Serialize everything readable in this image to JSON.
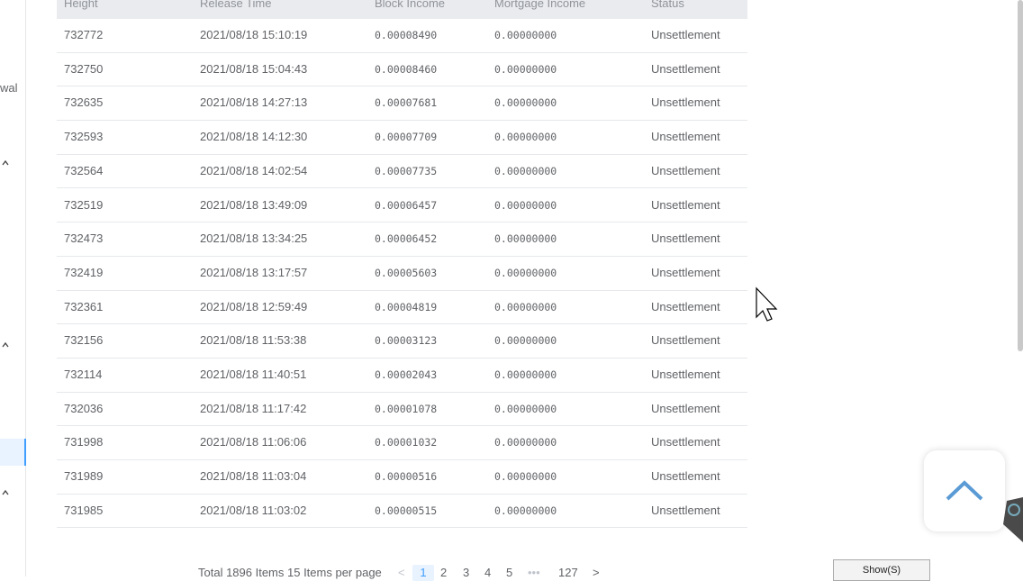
{
  "sidebar": {
    "label": "wal"
  },
  "table": {
    "header": [
      "Height",
      "Release Time",
      "Block Income",
      "Mortgage Income",
      "Status"
    ],
    "rows": [
      [
        "732772",
        "2021/08/18 15:10:19",
        "0.00008490",
        "0.00000000",
        "Unsettlement"
      ],
      [
        "732750",
        "2021/08/18 15:04:43",
        "0.00008460",
        "0.00000000",
        "Unsettlement"
      ],
      [
        "732635",
        "2021/08/18 14:27:13",
        "0.00007681",
        "0.00000000",
        "Unsettlement"
      ],
      [
        "732593",
        "2021/08/18 14:12:30",
        "0.00007709",
        "0.00000000",
        "Unsettlement"
      ],
      [
        "732564",
        "2021/08/18 14:02:54",
        "0.00007735",
        "0.00000000",
        "Unsettlement"
      ],
      [
        "732519",
        "2021/08/18 13:49:09",
        "0.00006457",
        "0.00000000",
        "Unsettlement"
      ],
      [
        "732473",
        "2021/08/18 13:34:25",
        "0.00006452",
        "0.00000000",
        "Unsettlement"
      ],
      [
        "732419",
        "2021/08/18 13:17:57",
        "0.00005603",
        "0.00000000",
        "Unsettlement"
      ],
      [
        "732361",
        "2021/08/18 12:59:49",
        "0.00004819",
        "0.00000000",
        "Unsettlement"
      ],
      [
        "732156",
        "2021/08/18 11:53:38",
        "0.00003123",
        "0.00000000",
        "Unsettlement"
      ],
      [
        "732114",
        "2021/08/18 11:40:51",
        "0.00002043",
        "0.00000000",
        "Unsettlement"
      ],
      [
        "732036",
        "2021/08/18 11:17:42",
        "0.00001078",
        "0.00000000",
        "Unsettlement"
      ],
      [
        "731998",
        "2021/08/18 11:06:06",
        "0.00001032",
        "0.00000000",
        "Unsettlement"
      ],
      [
        "731989",
        "2021/08/18 11:03:04",
        "0.00000516",
        "0.00000000",
        "Unsettlement"
      ],
      [
        "731985",
        "2021/08/18 11:03:02",
        "0.00000515",
        "0.00000000",
        "Unsettlement"
      ]
    ]
  },
  "pagination": {
    "summary": "Total 1896 Items 15 Items per page",
    "prev": "<",
    "pages": [
      "1",
      "2",
      "3",
      "4",
      "5",
      "•••",
      "127"
    ],
    "next": ">"
  },
  "show_button": "Show(S)"
}
